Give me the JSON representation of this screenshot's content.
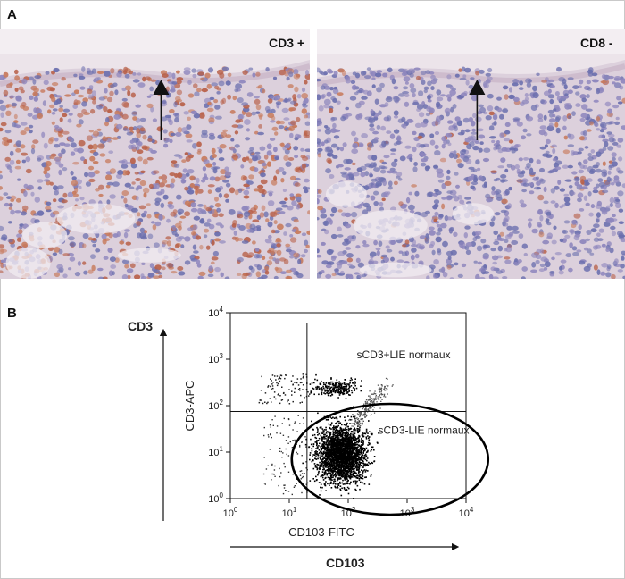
{
  "panel_a": {
    "label": "A",
    "left_image": {
      "stain": "CD3 +"
    },
    "right_image": {
      "stain": "CD8 -"
    }
  },
  "panel_b": {
    "label": "B",
    "side_labels": {
      "vertical": "CD3",
      "horizontal": "CD103"
    }
  },
  "chart_data": {
    "type": "scatter",
    "xlabel": "CD103-FITC",
    "ylabel": "CD3-APC",
    "x_scale": "log",
    "y_scale": "log",
    "xlim": [
      1,
      10000
    ],
    "ylim": [
      1,
      10000
    ],
    "x_tick_labels": [
      {
        "base": "10",
        "exp": "0"
      },
      {
        "base": "10",
        "exp": "1"
      },
      {
        "base": "10",
        "exp": "2"
      },
      {
        "base": "10",
        "exp": "3"
      },
      {
        "base": "10",
        "exp": "4"
      }
    ],
    "y_tick_labels": [
      {
        "base": "10",
        "exp": "0"
      },
      {
        "base": "10",
        "exp": "1"
      },
      {
        "base": "10",
        "exp": "2"
      },
      {
        "base": "10",
        "exp": "3"
      },
      {
        "base": "10",
        "exp": "4"
      }
    ],
    "gates": {
      "x_threshold": 20,
      "y_threshold": 75
    },
    "populations": [
      {
        "annotation": "sCD3+LIE normaux",
        "x_center": 60,
        "y_center": 250,
        "x_spread": 0.2,
        "y_spread": 0.09
      },
      {
        "annotation": "sCD3-LIE normaux",
        "x_center": 75,
        "y_center": 10,
        "x_spread": 0.2,
        "y_spread": 0.3
      }
    ],
    "grid": false
  }
}
